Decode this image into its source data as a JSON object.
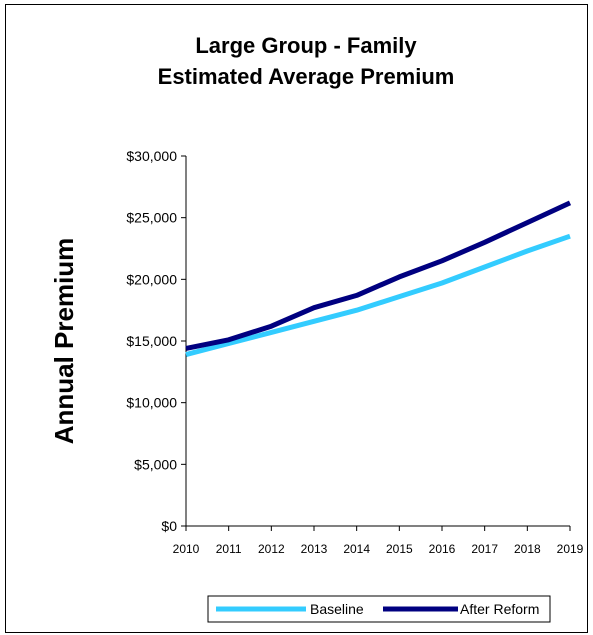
{
  "chart_data": {
    "type": "line",
    "title": [
      "Large Group - Family",
      "Estimated Average Premium"
    ],
    "ylabel": "Annual Premium",
    "xlabel": "",
    "categories": [
      "2010",
      "2011",
      "2012",
      "2013",
      "2014",
      "2015",
      "2016",
      "2017",
      "2018",
      "2019"
    ],
    "ylim": [
      0,
      30000
    ],
    "yticks": [
      0,
      5000,
      10000,
      15000,
      20000,
      25000,
      30000
    ],
    "ytick_labels": [
      "$0",
      "$5,000",
      "$10,000",
      "$15,000",
      "$20,000",
      "$25,000",
      "$30,000"
    ],
    "grid": false,
    "legend_position": "bottom",
    "series": [
      {
        "name": "Baseline",
        "color": "#33ccff",
        "values": [
          13900,
          14800,
          15700,
          16600,
          17500,
          18600,
          19700,
          21000,
          22300,
          23500
        ]
      },
      {
        "name": "After Reform",
        "color": "#000080",
        "values": [
          14400,
          15100,
          16200,
          17700,
          18700,
          20200,
          21500,
          23000,
          24600,
          26200
        ]
      }
    ]
  }
}
